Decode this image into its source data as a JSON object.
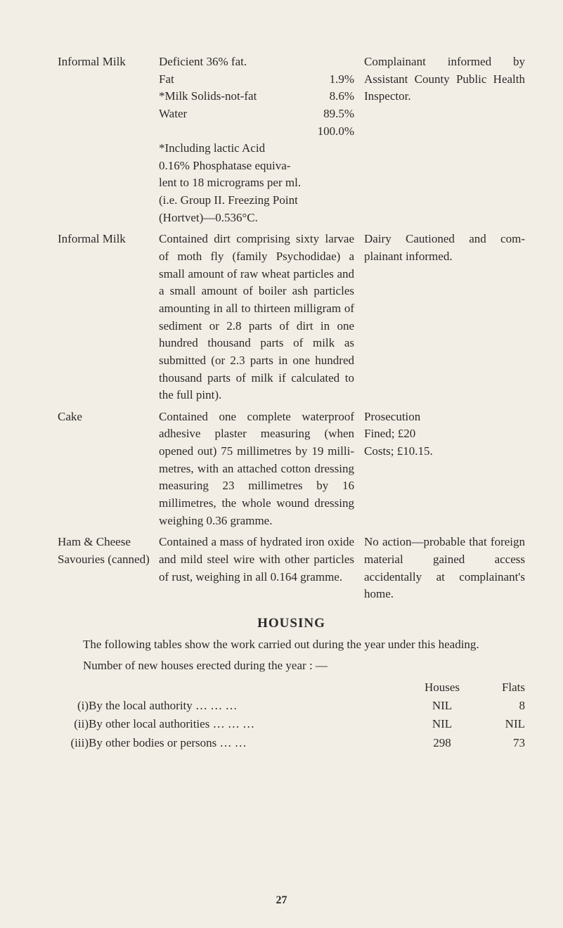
{
  "entries": [
    {
      "label": "Informal Milk",
      "desc_lines": [
        {
          "left": "Deficient 36% fat."
        },
        {
          "left": "Fat",
          "right": "1.9%"
        },
        {
          "left": "*Milk Solids-not-fat",
          "right": "8.6%"
        },
        {
          "left": "Water",
          "right": "89.5%"
        },
        {
          "left": "",
          "right": "100.0%"
        },
        {
          "left": "*Including    lactic    Acid"
        },
        {
          "left": "0.16% Phosphatase equiva-"
        },
        {
          "left": "lent to 18 micrograms per ml."
        },
        {
          "left": "(i.e. Group II. Freezing Point"
        },
        {
          "left": "(Hortvet)—0.536°C."
        }
      ],
      "action": "Complainant informed by Assistant County Public Health Inspector."
    },
    {
      "label": "Informal Milk",
      "desc": "Contained dirt comprising sixty larvae of moth fly (family Psychodidae) a small amount of raw wheat particles and a small amount of boiler ash particles amounting in all to thirteen milligram of sediment or 2.8 parts of dirt in one hundred thousand parts of milk as submitted (or 2.3 parts in one hundred thousand parts of milk if calculated to the full pint).",
      "action": "Dairy Cautioned and com­plainant informed."
    },
    {
      "label": "Cake",
      "desc": "Contained one complete waterproof adhesive plaster measuring (when opened out) 75 millimetres by 19 milli­metres, with an attached cotton dressing measuring 23 millimetres by 16 millimetres, the whole wound dressing weighing 0.36 gramme.",
      "action_lines": [
        "Prosecution",
        "Fined; £20",
        "Costs; £10.15."
      ]
    },
    {
      "label": "Ham & Cheese Savouries (canned)",
      "desc": "Contained a mass of hydrated iron oxide and mild steel wire with other particles of rust, weighing in all 0.164 gramme.",
      "action": "No action—probable that foreign material gained access accidentally at complainant's home."
    }
  ],
  "housing": {
    "heading": "HOUSING",
    "intro": "The following tables show the work carried out during the year under this heading.",
    "subhead": "Number of new houses erected during the year : —",
    "header_houses": "Houses",
    "header_flats": "Flats",
    "rows": [
      {
        "idx": "(i)",
        "label": "By the local authority     …    …   …",
        "houses": "NIL",
        "flats": "8"
      },
      {
        "idx": "(ii)",
        "label": "By other local authorities …    …   …",
        "houses": "NIL",
        "flats": "NIL"
      },
      {
        "idx": "(iii)",
        "label": "By other bodies or persons      …   …",
        "houses": "298",
        "flats": "73"
      }
    ]
  },
  "page_number": "27"
}
